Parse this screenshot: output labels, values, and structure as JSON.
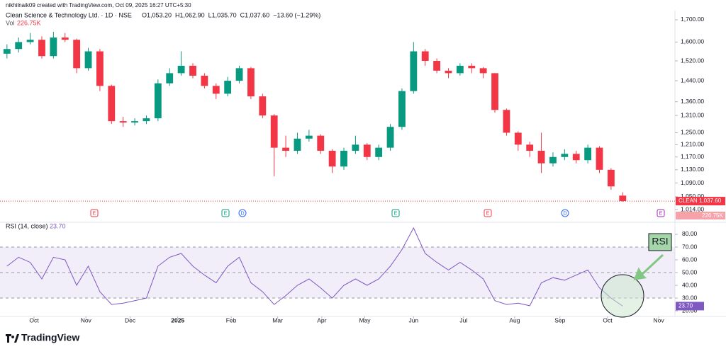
{
  "attribution": "nikhilnaik09 created with TradingView.com, Oct 09, 2025 16:27 UTC+5:30",
  "brand": "TradingView",
  "chart_data": [
    {
      "type": "candlestick",
      "title": "Clean Science & Technology Ltd. · 1D · NSE",
      "legend_values": [
        {
          "text": "O1,053.20",
          "color": "#f23645"
        },
        {
          "text": "H1,062.90",
          "color": "#f23645"
        },
        {
          "text": "L1,035.70",
          "color": "#f23645"
        },
        {
          "text": "C1,037.60",
          "color": "#f23645"
        },
        {
          "text": "−13.60 (−1.29%)",
          "color": "#f23645"
        }
      ],
      "volume_label": "Vol",
      "volume_value": "226.75K",
      "symbol": "CLEAN",
      "last_label": "1,037.60",
      "events": [
        "E",
        "E",
        "D",
        "E",
        "E",
        "D",
        "E"
      ],
      "up_color": "#089981",
      "down_color": "#f23645",
      "log_scale": true,
      "xlim": [
        -0.6,
        57.5
      ],
      "ylim": [
        987,
        1743
      ],
      "yticks": [
        {
          "value": 1700,
          "label": "1,700.00"
        },
        {
          "value": 1600,
          "label": "1,600.00"
        },
        {
          "value": 1520,
          "label": "1,520.00"
        },
        {
          "value": 1440,
          "label": "1,440.00"
        },
        {
          "value": 1360,
          "label": "1,360.00"
        },
        {
          "value": 1310,
          "label": "1,310.00"
        },
        {
          "value": 1250,
          "label": "1,250.00"
        },
        {
          "value": 1210,
          "label": "1,210.00"
        },
        {
          "value": 1170,
          "label": "1,170.00"
        },
        {
          "value": 1130,
          "label": "1,130.00"
        },
        {
          "value": 1090,
          "label": "1,090.00"
        },
        {
          "value": 1050,
          "label": "1,050.00"
        },
        {
          "value": 1014,
          "label": "1,014.00"
        }
      ],
      "open": [
        1550,
        1570,
        1600,
        1610,
        1540,
        1620,
        1610,
        1490,
        1560,
        1420,
        1290,
        1285,
        1290,
        1300,
        1430,
        1470,
        1500,
        1460,
        1420,
        1390,
        1440,
        1490,
        1380,
        1310,
        1200,
        1190,
        1230,
        1240,
        1190,
        1140,
        1190,
        1210,
        1170,
        1200,
        1270,
        1400,
        1560,
        1520,
        1480,
        1470,
        1500,
        1490,
        1470,
        1330,
        1250,
        1210,
        1190,
        1150,
        1170,
        1180,
        1160,
        1200,
        1130,
        1053.2
      ],
      "high": [
        1590,
        1620,
        1640,
        1625,
        1645,
        1640,
        1615,
        1575,
        1570,
        1425,
        1305,
        1300,
        1310,
        1445,
        1490,
        1560,
        1510,
        1470,
        1430,
        1455,
        1500,
        1495,
        1390,
        1315,
        1240,
        1250,
        1260,
        1245,
        1195,
        1200,
        1240,
        1215,
        1210,
        1280,
        1410,
        1600,
        1570,
        1530,
        1490,
        1510,
        1510,
        1495,
        1470,
        1335,
        1255,
        1220,
        1250,
        1185,
        1195,
        1190,
        1210,
        1205,
        1135,
        1062.9
      ],
      "low": [
        1530,
        1555,
        1590,
        1530,
        1530,
        1600,
        1470,
        1480,
        1400,
        1280,
        1270,
        1275,
        1280,
        1290,
        1420,
        1460,
        1450,
        1410,
        1370,
        1380,
        1430,
        1370,
        1300,
        1110,
        1170,
        1180,
        1220,
        1180,
        1120,
        1130,
        1180,
        1160,
        1160,
        1190,
        1260,
        1390,
        1500,
        1470,
        1450,
        1460,
        1470,
        1450,
        1320,
        1240,
        1190,
        1170,
        1120,
        1140,
        1160,
        1150,
        1150,
        1120,
        1070,
        1035.7
      ],
      "close": [
        1570,
        1600,
        1610,
        1540,
        1620,
        1610,
        1490,
        1560,
        1420,
        1290,
        1285,
        1290,
        1300,
        1430,
        1470,
        1500,
        1460,
        1420,
        1390,
        1440,
        1490,
        1380,
        1310,
        1200,
        1190,
        1230,
        1240,
        1190,
        1140,
        1190,
        1210,
        1170,
        1200,
        1270,
        1400,
        1560,
        1520,
        1480,
        1470,
        1500,
        1490,
        1470,
        1330,
        1250,
        1210,
        1190,
        1150,
        1170,
        1180,
        1160,
        1200,
        1130,
        1080,
        1037.6
      ]
    },
    {
      "type": "line",
      "title": "RSI (14, close)",
      "value_label": "23.70",
      "annotation": "RSI",
      "color": "#7e57c2",
      "xlim": [
        -0.6,
        57.5
      ],
      "xticks": [
        {
          "value": 2.33,
          "label": "Oct"
        },
        {
          "value": 6.8,
          "label": "Nov"
        },
        {
          "value": 10.6,
          "label": "Dec"
        },
        {
          "value": 14.7,
          "label": "2025"
        },
        {
          "value": 19.3,
          "label": "Feb"
        },
        {
          "value": 23.3,
          "label": "Mar"
        },
        {
          "value": 27.1,
          "label": "Apr"
        },
        {
          "value": 30.8,
          "label": "May"
        },
        {
          "value": 35.0,
          "label": "Jun"
        },
        {
          "value": 39.3,
          "label": "Jul"
        },
        {
          "value": 43.7,
          "label": "Aug"
        },
        {
          "value": 47.6,
          "label": "Sep"
        },
        {
          "value": 51.7,
          "label": "Oct"
        },
        {
          "value": 56.1,
          "label": "Nov"
        }
      ],
      "ylim": [
        15.6,
        86.1
      ],
      "yticks": [
        {
          "value": 80,
          "label": "80.00"
        },
        {
          "value": 70,
          "label": "70.00"
        },
        {
          "value": 60,
          "label": "60.00"
        },
        {
          "value": 50,
          "label": "50.00"
        },
        {
          "value": 40,
          "label": "40.00"
        },
        {
          "value": 30,
          "label": "30.00"
        },
        {
          "value": 20,
          "label": "20.00"
        }
      ],
      "levels": [
        30,
        50,
        70
      ],
      "values": [
        55,
        62,
        58,
        45,
        62,
        60,
        40,
        55,
        35,
        25,
        26,
        28,
        30,
        55,
        62,
        65,
        55,
        48,
        42,
        55,
        62,
        42,
        35,
        25,
        32,
        40,
        45,
        38,
        30,
        40,
        45,
        40,
        45,
        55,
        68,
        85,
        65,
        58,
        52,
        58,
        52,
        45,
        28,
        25,
        26,
        24,
        42,
        46,
        44,
        48,
        52,
        38,
        30,
        23.7
      ]
    }
  ]
}
